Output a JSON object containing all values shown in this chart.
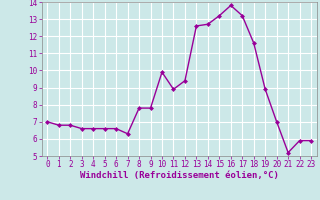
{
  "x": [
    0,
    1,
    2,
    3,
    4,
    5,
    6,
    7,
    8,
    9,
    10,
    11,
    12,
    13,
    14,
    15,
    16,
    17,
    18,
    19,
    20,
    21,
    22,
    23
  ],
  "y": [
    7.0,
    6.8,
    6.8,
    6.6,
    6.6,
    6.6,
    6.6,
    6.3,
    7.8,
    7.8,
    9.9,
    8.9,
    9.4,
    12.6,
    12.7,
    13.2,
    13.8,
    13.2,
    11.6,
    8.9,
    7.0,
    5.2,
    5.9,
    5.9
  ],
  "line_color": "#990099",
  "marker": "D",
  "marker_size": 2,
  "bg_color": "#cce8e8",
  "grid_color": "#ffffff",
  "xlabel": "Windchill (Refroidissement éolien,°C)",
  "xlabel_color": "#990099",
  "tick_color": "#990099",
  "ylim": [
    5,
    14
  ],
  "xlim": [
    -0.5,
    23.5
  ],
  "yticks": [
    5,
    6,
    7,
    8,
    9,
    10,
    11,
    12,
    13,
    14
  ],
  "xticks": [
    0,
    1,
    2,
    3,
    4,
    5,
    6,
    7,
    8,
    9,
    10,
    11,
    12,
    13,
    14,
    15,
    16,
    17,
    18,
    19,
    20,
    21,
    22,
    23
  ],
  "tick_fontsize": 5.5,
  "xlabel_fontsize": 6.5,
  "line_width": 1.0
}
